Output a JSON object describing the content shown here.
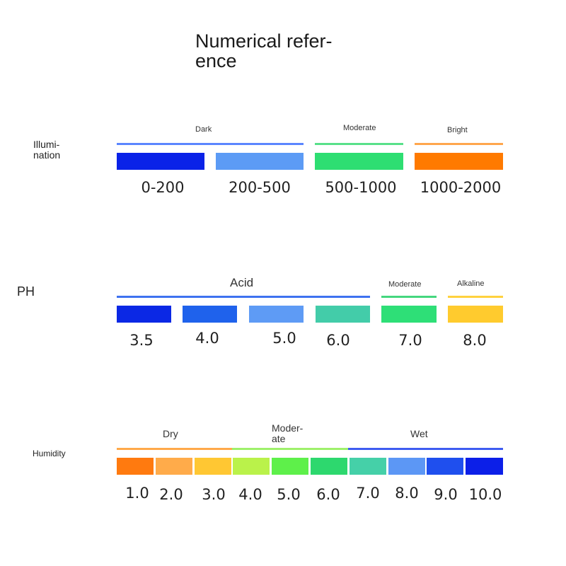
{
  "title": [
    "Numerical refer-",
    "ence"
  ],
  "illumination": {
    "label": [
      "Illumi-",
      "nation"
    ],
    "categories": [
      {
        "name": "Dark",
        "color": "#5b86ff"
      },
      {
        "name": "Moderate",
        "color": "#58e08a"
      },
      {
        "name": "Bright",
        "color": "#ffa64d"
      }
    ],
    "swatches": [
      {
        "value": "0-200",
        "color": "#0a22e8"
      },
      {
        "value": "200-500",
        "color": "#5c9bf5"
      },
      {
        "value": "500-1000",
        "color": "#2ede72"
      },
      {
        "value": "1000-2000",
        "color": "#ff7a00"
      }
    ]
  },
  "ph": {
    "label": "PH",
    "categories": [
      {
        "name": "Acid",
        "color": "#3e72f0"
      },
      {
        "name": "Moderate",
        "color": "#45d77e"
      },
      {
        "name": "Alkaline",
        "color": "#ffd23e"
      }
    ],
    "swatches": [
      {
        "value": "3.5",
        "color": "#0b28e5"
      },
      {
        "value": "4.0",
        "color": "#1f62ec"
      },
      {
        "value": "5.0",
        "color": "#5e9bf5"
      },
      {
        "value": "6.0",
        "color": "#43cca9"
      },
      {
        "value": "7.0",
        "color": "#2edf77"
      },
      {
        "value": "8.0",
        "color": "#ffcb2e"
      }
    ]
  },
  "humidity": {
    "label": "Humidity",
    "categories": [
      {
        "name": "Dry",
        "color": "#ffa94a"
      },
      {
        "name": [
          "Moder-",
          "ate"
        ],
        "color": "#9ef06b"
      },
      {
        "name": "Wet",
        "color": "#3f5cf0"
      }
    ],
    "swatches": [
      {
        "value": "1.0",
        "color": "#ff7a0f"
      },
      {
        "value": "2.0",
        "color": "#ffab4a"
      },
      {
        "value": "3.0",
        "color": "#ffc733"
      },
      {
        "value": "4.0",
        "color": "#baf24a"
      },
      {
        "value": "5.0",
        "color": "#5ef04a"
      },
      {
        "value": "6.0",
        "color": "#2dd86e"
      },
      {
        "value": "7.0",
        "color": "#45d0a8"
      },
      {
        "value": "8.0",
        "color": "#5c97f5"
      },
      {
        "value": "9.0",
        "color": "#1f4fee"
      },
      {
        "value": "10.0",
        "color": "#0c1fe8"
      }
    ]
  }
}
